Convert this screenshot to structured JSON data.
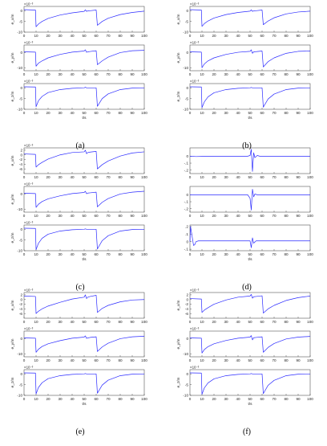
{
  "figure": {
    "captions": [
      "(a)",
      "(b)",
      "(c)",
      "(d)",
      "(e)",
      "(f)"
    ]
  },
  "colors": {
    "series": "#2b2bff",
    "axis": "#555555",
    "text": "#222222"
  },
  "chart_data": [
    {
      "panel": "(a)",
      "type": "line",
      "xlabel": "t/s",
      "x_ticks": [
        0,
        10,
        20,
        30,
        40,
        50,
        60,
        70,
        80,
        90,
        100
      ],
      "xlim": [
        0,
        100
      ],
      "subplots": [
        {
          "ylabel": "e_x/m",
          "exponent": "×10⁻³",
          "ylim": [
            -10,
            2
          ],
          "y_ticks": [
            0,
            -5,
            -10
          ],
          "x": [
            0,
            9.5,
            10,
            12,
            15,
            20,
            30,
            40,
            50,
            51,
            52,
            53,
            55,
            60,
            61,
            65,
            70,
            80,
            90,
            100
          ],
          "y": [
            0.5,
            0.3,
            -7.5,
            -6.2,
            -5,
            -3.6,
            -2,
            -1,
            -0.3,
            0.4,
            -0.3,
            -0.1,
            0,
            0.3,
            -6.8,
            -5,
            -3.5,
            -1.8,
            -0.8,
            -0.2
          ]
        },
        {
          "ylabel": "e_y/m",
          "exponent": "×10⁻³",
          "ylim": [
            -12,
            5
          ],
          "y_ticks": [
            0,
            -10
          ],
          "x": [
            0,
            9.5,
            10,
            12,
            15,
            20,
            30,
            40,
            50,
            51,
            52,
            53,
            55,
            60,
            61,
            65,
            70,
            80,
            90,
            100
          ],
          "y": [
            0.5,
            0.3,
            -9,
            -7,
            -5.5,
            -3.5,
            -1.2,
            0.3,
            1,
            1.8,
            0.2,
            0.5,
            0.7,
            1.2,
            -8,
            -5.5,
            -3,
            0,
            1.2,
            1.5
          ]
        },
        {
          "ylabel": "e_z/m",
          "exponent": "×10⁻³",
          "ylim": [
            -10,
            2
          ],
          "y_ticks": [
            0,
            -5,
            -10
          ],
          "x": [
            0,
            9.5,
            10,
            12,
            15,
            20,
            30,
            40,
            50,
            51,
            52,
            60,
            61,
            65,
            70,
            80,
            90,
            100
          ],
          "y": [
            0.5,
            0.4,
            -8.8,
            -6,
            -4,
            -2.2,
            -0.8,
            -0.2,
            0,
            0.3,
            0,
            0,
            -8.6,
            -5,
            -2.8,
            -0.8,
            -0.1,
            0
          ]
        }
      ]
    },
    {
      "panel": "(b)",
      "type": "line",
      "xlabel": "t/s",
      "x_ticks": [
        0,
        10,
        20,
        30,
        40,
        50,
        60,
        70,
        80,
        90,
        100
      ],
      "xlim": [
        0,
        100
      ],
      "subplots": [
        {
          "ylabel": "e_x/m",
          "exponent": "×10⁻³",
          "ylim": [
            -10,
            2
          ],
          "y_ticks": [
            0,
            -5,
            -10
          ],
          "x": [
            0,
            9.5,
            10,
            12,
            15,
            20,
            30,
            40,
            50,
            51,
            52,
            53,
            55,
            60,
            61,
            65,
            70,
            80,
            90,
            100
          ],
          "y": [
            0.5,
            0.3,
            -7.3,
            -6,
            -4.8,
            -3.4,
            -1.8,
            -0.8,
            -0.2,
            0.4,
            -0.3,
            -0.1,
            0,
            0.3,
            -6.5,
            -4.8,
            -3.3,
            -1.5,
            -0.6,
            -0.2
          ]
        },
        {
          "ylabel": "e_y/m",
          "exponent": "×10⁻³",
          "ylim": [
            -12,
            5
          ],
          "y_ticks": [
            0,
            -10
          ],
          "x": [
            0,
            9.5,
            10,
            12,
            15,
            20,
            30,
            40,
            50,
            51,
            52,
            53,
            55,
            60,
            61,
            65,
            70,
            80,
            90,
            100
          ],
          "y": [
            0.5,
            0.3,
            -10,
            -7.5,
            -5.5,
            -3.5,
            -1.2,
            0.2,
            0.8,
            1.8,
            -0.5,
            0.5,
            0.6,
            1,
            -9.5,
            -6,
            -3.5,
            -0.5,
            0.8,
            1
          ]
        },
        {
          "ylabel": "e_z/m",
          "exponent": "×10⁻³",
          "ylim": [
            -10,
            2
          ],
          "y_ticks": [
            0,
            -5,
            -10
          ],
          "x": [
            0,
            9.5,
            10,
            12,
            15,
            20,
            30,
            40,
            50,
            51,
            52,
            60,
            61,
            65,
            70,
            80,
            90,
            100
          ],
          "y": [
            0.5,
            0.4,
            -9.2,
            -6.5,
            -4.2,
            -2.3,
            -0.8,
            -0.2,
            0,
            0.2,
            0,
            0,
            -9,
            -5.2,
            -2.9,
            -0.8,
            -0.1,
            0
          ]
        }
      ]
    },
    {
      "panel": "(c)",
      "type": "line",
      "xlabel": "t/s",
      "x_ticks": [
        0,
        10,
        20,
        30,
        40,
        50,
        60,
        70,
        80,
        90,
        100
      ],
      "xlim": [
        0,
        100
      ],
      "subplots": [
        {
          "ylabel": "e_x/m",
          "exponent": "×10⁻³",
          "ylim": [
            -8,
            3
          ],
          "y_ticks": [
            2,
            0,
            -2,
            -4,
            -6
          ],
          "x": [
            0,
            9.5,
            10,
            12,
            15,
            20,
            30,
            40,
            50,
            51,
            52,
            53,
            55,
            60,
            61,
            65,
            70,
            80,
            90,
            100
          ],
          "y": [
            0.4,
            0.2,
            -5.2,
            -4.2,
            -3.2,
            -1.8,
            0,
            1,
            1.3,
            2,
            0.5,
            1,
            1.2,
            1.5,
            -6,
            -4.2,
            -2.6,
            -0.5,
            0.8,
            1.3
          ]
        },
        {
          "ylabel": "e_y/m",
          "exponent": "×10⁻³",
          "ylim": [
            -12,
            5
          ],
          "y_ticks": [
            0,
            -10
          ],
          "x": [
            0,
            9.5,
            10,
            12,
            15,
            20,
            30,
            40,
            50,
            51,
            52,
            53,
            55,
            60,
            61,
            65,
            70,
            80,
            90,
            100
          ],
          "y": [
            0.5,
            0.3,
            -8.8,
            -6.8,
            -5,
            -3.2,
            -1.2,
            0.3,
            1,
            1.8,
            0.2,
            0.6,
            0.8,
            1.2,
            -8.5,
            -5.5,
            -3,
            0,
            1.2,
            1.8
          ]
        },
        {
          "ylabel": "e_z/m",
          "exponent": "×10⁻³",
          "ylim": [
            -10,
            2
          ],
          "y_ticks": [
            0,
            -5,
            -10
          ],
          "x": [
            0,
            9.5,
            10,
            12,
            15,
            20,
            30,
            40,
            50,
            51,
            52,
            60,
            61,
            65,
            70,
            80,
            90,
            100
          ],
          "y": [
            0.5,
            0.4,
            -9.5,
            -6.5,
            -4.2,
            -2.3,
            -0.8,
            -0.2,
            0,
            0.2,
            0,
            0,
            -9.2,
            -5.3,
            -3,
            -0.8,
            -0.1,
            0
          ]
        }
      ]
    },
    {
      "panel": "(d)",
      "type": "line",
      "xlabel": "t/s",
      "x_ticks": [
        0,
        10,
        20,
        30,
        40,
        50,
        60,
        70,
        80,
        90,
        100
      ],
      "xlim": [
        0,
        100
      ],
      "subplots": [
        {
          "ylabel": "",
          "exponent": "",
          "ylim": [
            -0.25,
            0.12
          ],
          "y_ticks": [
            0,
            -0.1,
            -0.2
          ],
          "x": [
            0,
            5,
            10,
            20,
            40,
            48,
            50,
            51,
            52,
            53,
            54,
            56,
            58,
            60,
            70,
            80,
            100
          ],
          "y": [
            0,
            -0.005,
            -0.003,
            0,
            0,
            0,
            0.01,
            0.1,
            -0.22,
            0.05,
            -0.02,
            0.01,
            0,
            0,
            0,
            0,
            0
          ]
        },
        {
          "ylabel": "",
          "exponent": "",
          "ylim": [
            -0.25,
            0.12
          ],
          "y_ticks": [
            0,
            -0.1,
            -0.2
          ],
          "x": [
            0,
            5,
            10,
            20,
            40,
            48,
            50,
            51,
            52,
            53,
            54,
            56,
            58,
            60,
            70,
            80,
            100
          ],
          "y": [
            0,
            0,
            0,
            0,
            0,
            0,
            -0.05,
            -0.22,
            0.08,
            -0.03,
            0.01,
            0,
            0,
            0,
            0,
            0,
            0
          ]
        },
        {
          "ylabel": "",
          "exponent": "",
          "ylim": [
            -0.12,
            0.22
          ],
          "y_ticks": [
            0.2,
            0.1,
            0,
            -0.1
          ],
          "x": [
            0,
            0.5,
            1,
            2,
            3,
            4,
            5,
            7,
            10,
            20,
            40,
            50,
            51,
            52,
            53,
            55,
            60,
            70,
            100
          ],
          "y": [
            0,
            0.2,
            0.15,
            0.05,
            -0.05,
            -0.04,
            0,
            0.01,
            0.01,
            0.01,
            0.01,
            0.01,
            -0.08,
            0.05,
            -0.02,
            0.01,
            0.01,
            0.01,
            0.01
          ]
        }
      ]
    },
    {
      "panel": "(e)",
      "type": "line",
      "xlabel": "t/s",
      "x_ticks": [
        0,
        10,
        20,
        30,
        40,
        50,
        60,
        70,
        80,
        90,
        100
      ],
      "xlim": [
        0,
        100
      ],
      "subplots": [
        {
          "ylabel": "e_x/m",
          "exponent": "×10⁻³",
          "ylim": [
            -8,
            3
          ],
          "y_ticks": [
            2,
            0,
            -2,
            -4,
            -6
          ],
          "x": [
            0,
            9.5,
            10,
            12,
            15,
            20,
            30,
            40,
            50,
            51,
            52,
            53,
            55,
            60,
            61,
            65,
            70,
            80,
            90,
            100
          ],
          "y": [
            1.5,
            1.3,
            -6,
            -5,
            -4,
            -2.8,
            -1.2,
            0.2,
            1,
            2,
            0.4,
            1,
            1.3,
            1.8,
            -5.5,
            -3.8,
            -2.5,
            -1,
            -0.2,
            0
          ]
        },
        {
          "ylabel": "e_y/m",
          "exponent": "×10⁻³",
          "ylim": [
            -12,
            5
          ],
          "y_ticks": [
            0,
            -10
          ],
          "x": [
            0,
            9.5,
            10,
            12,
            15,
            20,
            30,
            40,
            50,
            51,
            52,
            53,
            55,
            60,
            61,
            65,
            70,
            80,
            90,
            100
          ],
          "y": [
            0.5,
            0.3,
            -9,
            -7,
            -5.2,
            -3.4,
            -1.3,
            0.3,
            1,
            1.8,
            0.2,
            0.5,
            0.8,
            1.2,
            -8.5,
            -5.5,
            -3,
            0,
            1.2,
            1.6
          ]
        },
        {
          "ylabel": "e_z/m",
          "exponent": "×10⁻³",
          "ylim": [
            -10,
            2
          ],
          "y_ticks": [
            0,
            -5,
            -10
          ],
          "x": [
            0,
            9.5,
            10,
            12,
            15,
            20,
            30,
            40,
            50,
            51,
            52,
            60,
            61,
            65,
            70,
            80,
            90,
            100
          ],
          "y": [
            0.5,
            0.4,
            -9.3,
            -6.3,
            -4.1,
            -2.2,
            -0.8,
            -0.2,
            0,
            0.2,
            0,
            0,
            -9,
            -5.2,
            -2.9,
            -0.8,
            -0.1,
            0
          ]
        }
      ]
    },
    {
      "panel": "(f)",
      "type": "line",
      "xlabel": "t/s",
      "x_ticks": [
        0,
        10,
        20,
        30,
        40,
        50,
        60,
        70,
        80,
        90,
        100
      ],
      "xlim": [
        0,
        100
      ],
      "subplots": [
        {
          "ylabel": "e_x/m",
          "exponent": "×10⁻³",
          "ylim": [
            -8,
            3
          ],
          "y_ticks": [
            2,
            0,
            -2,
            -4,
            -6
          ],
          "x": [
            0,
            9.5,
            10,
            12,
            15,
            20,
            30,
            40,
            50,
            51,
            52,
            53,
            55,
            60,
            61,
            65,
            70,
            80,
            90,
            100
          ],
          "y": [
            0.4,
            0.2,
            -5.5,
            -4.5,
            -3.5,
            -2,
            -0.2,
            1,
            1.5,
            2.2,
            0.6,
            1.2,
            1.3,
            1.6,
            -5.8,
            -4,
            -2.5,
            -0.4,
            0.8,
            1.5
          ]
        },
        {
          "ylabel": "e_y/m",
          "exponent": "×10⁻³",
          "ylim": [
            -12,
            5
          ],
          "y_ticks": [
            0,
            -10
          ],
          "x": [
            0,
            9.5,
            10,
            12,
            15,
            20,
            30,
            40,
            50,
            51,
            52,
            53,
            55,
            60,
            61,
            65,
            70,
            80,
            90,
            100
          ],
          "y": [
            0.5,
            0.3,
            -9.5,
            -7.2,
            -5.3,
            -3.4,
            -1.2,
            0.3,
            1,
            2,
            -0.8,
            0.6,
            0.8,
            1.2,
            -9,
            -5.8,
            -3.2,
            -0.2,
            1,
            1.5
          ]
        },
        {
          "ylabel": "e_z/m",
          "exponent": "×10⁻³",
          "ylim": [
            -10,
            2
          ],
          "y_ticks": [
            0,
            -5,
            -10
          ],
          "x": [
            0,
            9.5,
            10,
            12,
            15,
            20,
            30,
            40,
            50,
            51,
            52,
            60,
            61,
            65,
            70,
            80,
            90,
            100
          ],
          "y": [
            0.5,
            0.4,
            -9.5,
            -6.5,
            -4.2,
            -2.3,
            -0.8,
            -0.2,
            0,
            0.2,
            0,
            0,
            -9.2,
            -5.3,
            -3,
            -0.8,
            -0.1,
            0
          ]
        }
      ]
    }
  ]
}
